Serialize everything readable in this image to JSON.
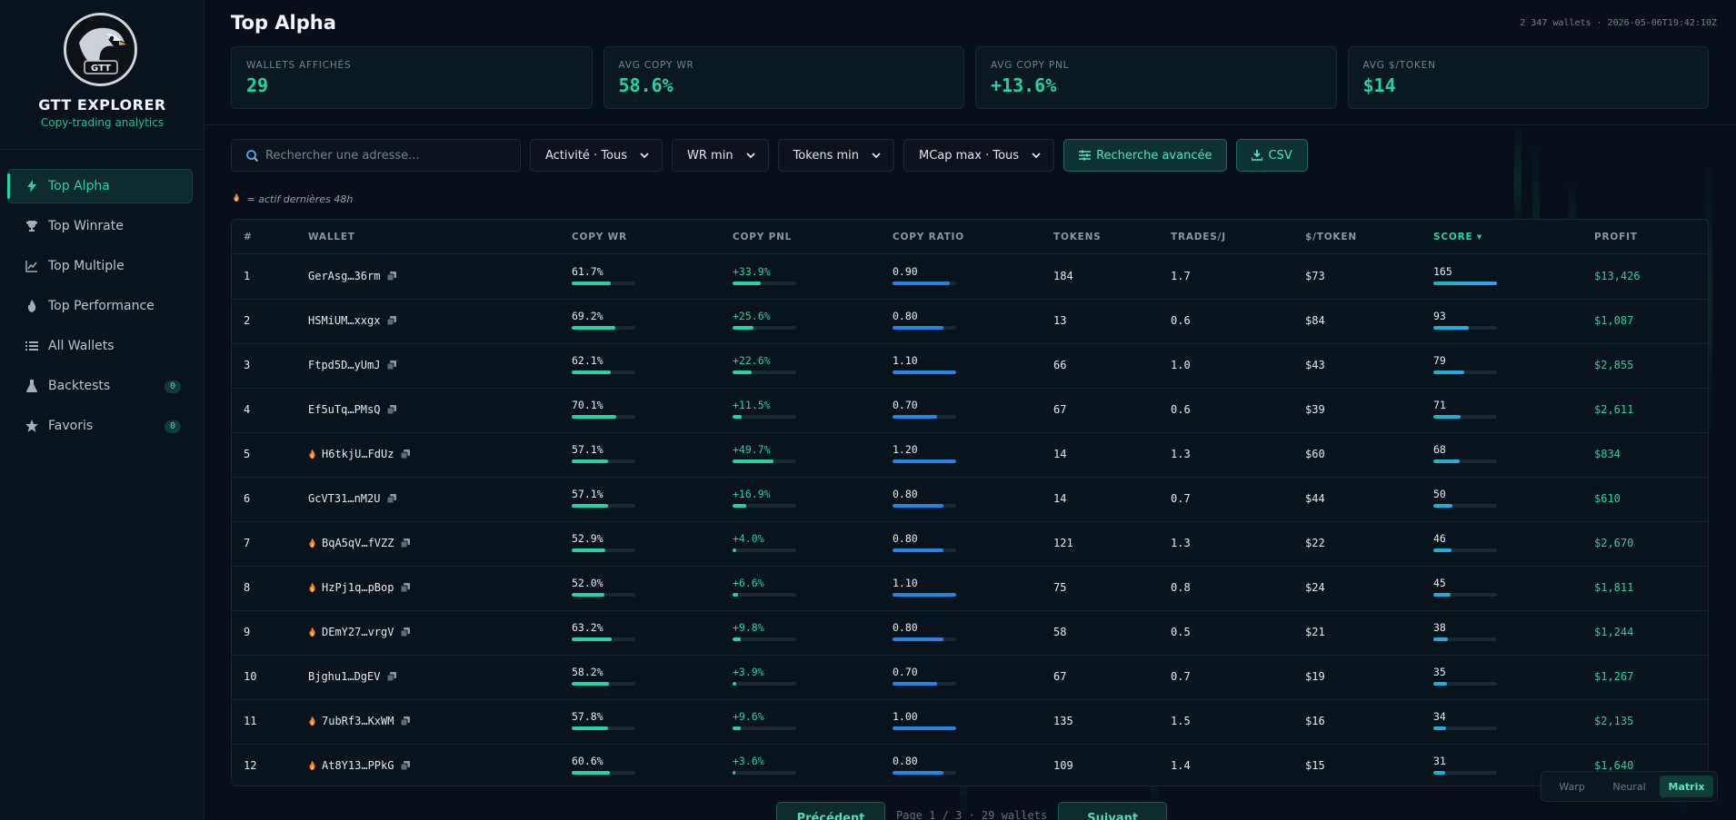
{
  "brand": {
    "name": "GTT EXPLORER",
    "tagline": "Copy-trading analytics"
  },
  "nav": [
    {
      "label": "Top Alpha",
      "icon": "bolt-icon",
      "active": true
    },
    {
      "label": "Top Winrate",
      "icon": "trophy-icon"
    },
    {
      "label": "Top Multiple",
      "icon": "chart-line-icon"
    },
    {
      "label": "Top Performance",
      "icon": "fire-icon"
    },
    {
      "label": "All Wallets",
      "icon": "list-icon"
    },
    {
      "label": "Backtests",
      "icon": "flask-icon",
      "badge": "0"
    },
    {
      "label": "Favoris",
      "icon": "star-icon",
      "badge": "0"
    }
  ],
  "header": {
    "title": "Top Alpha",
    "meta": "2 347 wallets · 2026-05-06T19:42:10Z"
  },
  "stats": [
    {
      "label": "WALLETS AFFICHÉS",
      "value": "29"
    },
    {
      "label": "AVG COPY WR",
      "value": "58.6%"
    },
    {
      "label": "AVG COPY PNL",
      "value": "+13.6%"
    },
    {
      "label": "AVG $/TOKEN",
      "value": "$14"
    }
  ],
  "filters": {
    "search_placeholder": "Rechercher une adresse...",
    "activity": "Activité · Tous",
    "wr_min": "WR min",
    "tokens_min": "Tokens min",
    "mcap_max": "MCap max · Tous",
    "advanced": "Recherche avancée",
    "csv": "CSV"
  },
  "legend_note": "= actif dernières 48h",
  "table": {
    "columns": [
      "#",
      "WALLET",
      "COPY WR",
      "COPY PNL",
      "COPY RATIO",
      "TOKENS",
      "TRADES/J",
      "$/TOKEN",
      "SCORE ▾",
      "PROFIT"
    ],
    "rows": [
      {
        "rank": "1",
        "wallet": "GerAsg…36rm",
        "active": false,
        "wr": "61.7%",
        "wr_v": 61.7,
        "pnl": "+33.9%",
        "pnl_v": 33.9,
        "ratio": "0.90",
        "ratio_v": 0.9,
        "tokens": "184",
        "trades": "1.7",
        "per_token": "$73",
        "score": "165",
        "score_v": 165,
        "profit": "$13,426"
      },
      {
        "rank": "2",
        "wallet": "HSMiUM…xxgx",
        "active": false,
        "wr": "69.2%",
        "wr_v": 69.2,
        "pnl": "+25.6%",
        "pnl_v": 25.6,
        "ratio": "0.80",
        "ratio_v": 0.8,
        "tokens": "13",
        "trades": "0.6",
        "per_token": "$84",
        "score": "93",
        "score_v": 93,
        "profit": "$1,087"
      },
      {
        "rank": "3",
        "wallet": "Ftpd5D…yUmJ",
        "active": false,
        "wr": "62.1%",
        "wr_v": 62.1,
        "pnl": "+22.6%",
        "pnl_v": 22.6,
        "ratio": "1.10",
        "ratio_v": 1.1,
        "tokens": "66",
        "trades": "1.0",
        "per_token": "$43",
        "score": "79",
        "score_v": 79,
        "profit": "$2,855"
      },
      {
        "rank": "4",
        "wallet": "Ef5uTq…PMsQ",
        "active": false,
        "wr": "70.1%",
        "wr_v": 70.1,
        "pnl": "+11.5%",
        "pnl_v": 11.5,
        "ratio": "0.70",
        "ratio_v": 0.7,
        "tokens": "67",
        "trades": "0.6",
        "per_token": "$39",
        "score": "71",
        "score_v": 71,
        "profit": "$2,611"
      },
      {
        "rank": "5",
        "wallet": "H6tkjU…FdUz",
        "active": true,
        "wr": "57.1%",
        "wr_v": 57.1,
        "pnl": "+49.7%",
        "pnl_v": 49.7,
        "ratio": "1.20",
        "ratio_v": 1.2,
        "tokens": "14",
        "trades": "1.3",
        "per_token": "$60",
        "score": "68",
        "score_v": 68,
        "profit": "$834"
      },
      {
        "rank": "6",
        "wallet": "GcVT31…nM2U",
        "active": false,
        "wr": "57.1%",
        "wr_v": 57.1,
        "pnl": "+16.9%",
        "pnl_v": 16.9,
        "ratio": "0.80",
        "ratio_v": 0.8,
        "tokens": "14",
        "trades": "0.7",
        "per_token": "$44",
        "score": "50",
        "score_v": 50,
        "profit": "$610"
      },
      {
        "rank": "7",
        "wallet": "BqA5qV…fVZZ",
        "active": true,
        "wr": "52.9%",
        "wr_v": 52.9,
        "pnl": "+4.0%",
        "pnl_v": 4.0,
        "ratio": "0.80",
        "ratio_v": 0.8,
        "tokens": "121",
        "trades": "1.3",
        "per_token": "$22",
        "score": "46",
        "score_v": 46,
        "profit": "$2,670"
      },
      {
        "rank": "8",
        "wallet": "HzPj1q…pBop",
        "active": true,
        "wr": "52.0%",
        "wr_v": 52.0,
        "pnl": "+6.6%",
        "pnl_v": 6.6,
        "ratio": "1.10",
        "ratio_v": 1.1,
        "tokens": "75",
        "trades": "0.8",
        "per_token": "$24",
        "score": "45",
        "score_v": 45,
        "profit": "$1,811"
      },
      {
        "rank": "9",
        "wallet": "DEmY27…vrgV",
        "active": true,
        "wr": "63.2%",
        "wr_v": 63.2,
        "pnl": "+9.8%",
        "pnl_v": 9.8,
        "ratio": "0.80",
        "ratio_v": 0.8,
        "tokens": "58",
        "trades": "0.5",
        "per_token": "$21",
        "score": "38",
        "score_v": 38,
        "profit": "$1,244"
      },
      {
        "rank": "10",
        "wallet": "Bjghu1…DgEV",
        "active": false,
        "wr": "58.2%",
        "wr_v": 58.2,
        "pnl": "+3.9%",
        "pnl_v": 3.9,
        "ratio": "0.70",
        "ratio_v": 0.7,
        "tokens": "67",
        "trades": "0.7",
        "per_token": "$19",
        "score": "35",
        "score_v": 35,
        "profit": "$1,267"
      },
      {
        "rank": "11",
        "wallet": "7ubRf3…KxWM",
        "active": true,
        "wr": "57.8%",
        "wr_v": 57.8,
        "pnl": "+9.6%",
        "pnl_v": 9.6,
        "ratio": "1.00",
        "ratio_v": 1.0,
        "tokens": "135",
        "trades": "1.5",
        "per_token": "$16",
        "score": "34",
        "score_v": 34,
        "profit": "$2,135"
      },
      {
        "rank": "12",
        "wallet": "At8Y13…PPkG",
        "active": true,
        "wr": "60.6%",
        "wr_v": 60.6,
        "pnl": "+3.6%",
        "pnl_v": 3.6,
        "ratio": "0.80",
        "ratio_v": 0.8,
        "tokens": "109",
        "trades": "1.4",
        "per_token": "$15",
        "score": "31",
        "score_v": 31,
        "profit": "$1,640"
      }
    ]
  },
  "pagination": {
    "prev": "Précédent",
    "info": "Page 1 / 3 · 29 wallets",
    "next": "Suivant"
  },
  "background_modes": [
    {
      "label": "Warp"
    },
    {
      "label": "Neural"
    },
    {
      "label": "Matrix",
      "active": true
    }
  ],
  "colors": {
    "accent": "#22d3a7",
    "blue": "#2385e8",
    "bg": "#071019"
  }
}
